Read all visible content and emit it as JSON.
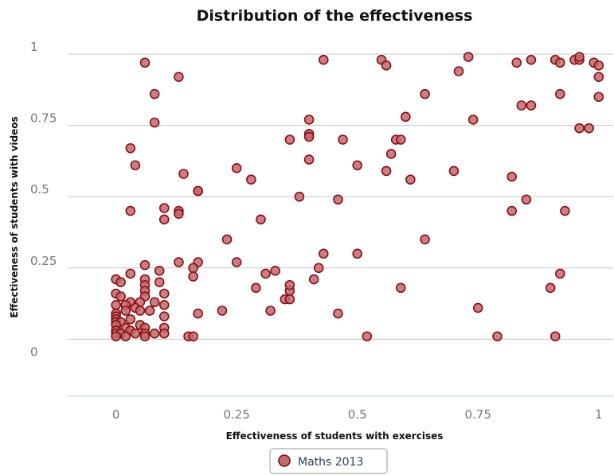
{
  "chart_data": {
    "type": "scatter",
    "title": "Distribution of the effectiveness",
    "xlabel": "Effectiveness of students with exercises",
    "ylabel": "Effectiveness of students with videos",
    "xlim": [
      -0.1,
      1.03
    ],
    "ylim": [
      -0.2,
      1.03
    ],
    "x_ticks": [
      {
        "value": 0,
        "label": "0"
      },
      {
        "value": 0.25,
        "label": "0.25"
      },
      {
        "value": 0.5,
        "label": "0.5"
      },
      {
        "value": 0.75,
        "label": "0.75"
      },
      {
        "value": 1,
        "label": "1"
      }
    ],
    "y_ticks": [
      {
        "value": 0,
        "label": "0"
      },
      {
        "value": 0.25,
        "label": "0.25"
      },
      {
        "value": 0.5,
        "label": "0.5"
      },
      {
        "value": 0.75,
        "label": "0.75"
      },
      {
        "value": 1,
        "label": "1"
      }
    ],
    "grid": true,
    "legend_position": "bottom-center",
    "colors": {
      "point_fill": "#c06a6f",
      "point_stroke": "#8b0d12",
      "grid": "#c8c8c8",
      "axis": "#c0d0e0"
    },
    "series": [
      {
        "name": "Maths 2013",
        "points": [
          [
            0.06,
            0.97
          ],
          [
            0.13,
            0.92
          ],
          [
            0.08,
            0.86
          ],
          [
            0.08,
            0.76
          ],
          [
            0.03,
            0.67
          ],
          [
            0.04,
            0.61
          ],
          [
            0.14,
            0.58
          ],
          [
            0.17,
            0.52
          ],
          [
            0.17,
            0.52
          ],
          [
            0.1,
            0.46
          ],
          [
            0.13,
            0.45
          ],
          [
            0.13,
            0.44
          ],
          [
            0.03,
            0.45
          ],
          [
            0.1,
            0.42
          ],
          [
            0.13,
            0.27
          ],
          [
            0.17,
            0.27
          ],
          [
            0.16,
            0.25
          ],
          [
            0.16,
            0.22
          ],
          [
            0.06,
            0.26
          ],
          [
            0.09,
            0.24
          ],
          [
            0.03,
            0.23
          ],
          [
            0.0,
            0.21
          ],
          [
            0.01,
            0.2
          ],
          [
            0.06,
            0.21
          ],
          [
            0.06,
            0.19
          ],
          [
            0.06,
            0.17
          ],
          [
            0.09,
            0.2
          ],
          [
            0.0,
            0.16
          ],
          [
            0.01,
            0.15
          ],
          [
            0.06,
            0.15
          ],
          [
            0.1,
            0.16
          ],
          [
            0.08,
            0.13
          ],
          [
            0.03,
            0.13
          ],
          [
            0.05,
            0.13
          ],
          [
            0.1,
            0.12
          ],
          [
            0.0,
            0.12
          ],
          [
            0.02,
            0.12
          ],
          [
            0.04,
            0.11
          ],
          [
            0.07,
            0.1
          ],
          [
            0.0,
            0.09
          ],
          [
            0.02,
            0.1
          ],
          [
            0.05,
            0.1
          ],
          [
            0.0,
            0.08
          ],
          [
            0.1,
            0.08
          ],
          [
            0.0,
            0.07
          ],
          [
            0.03,
            0.07
          ],
          [
            0.0,
            0.06
          ],
          [
            0.01,
            0.06
          ],
          [
            0.05,
            0.05
          ],
          [
            0.0,
            0.05
          ],
          [
            0.02,
            0.04
          ],
          [
            0.06,
            0.04
          ],
          [
            0.1,
            0.04
          ],
          [
            0.0,
            0.03
          ],
          [
            0.03,
            0.03
          ],
          [
            0.0,
            0.02
          ],
          [
            0.01,
            0.02
          ],
          [
            0.04,
            0.02
          ],
          [
            0.06,
            0.02
          ],
          [
            0.08,
            0.02
          ],
          [
            0.1,
            0.02
          ],
          [
            0.0,
            0.01
          ],
          [
            0.02,
            0.01
          ],
          [
            0.06,
            0.01
          ],
          [
            0.15,
            0.01
          ],
          [
            0.16,
            0.01
          ],
          [
            0.17,
            0.09
          ],
          [
            0.22,
            0.1
          ],
          [
            0.23,
            0.35
          ],
          [
            0.25,
            0.6
          ],
          [
            0.25,
            0.27
          ],
          [
            0.28,
            0.56
          ],
          [
            0.29,
            0.18
          ],
          [
            0.3,
            0.42
          ],
          [
            0.31,
            0.23
          ],
          [
            0.32,
            0.1
          ],
          [
            0.33,
            0.24
          ],
          [
            0.35,
            0.14
          ],
          [
            0.36,
            0.14
          ],
          [
            0.36,
            0.17
          ],
          [
            0.36,
            0.19
          ],
          [
            0.36,
            0.7
          ],
          [
            0.38,
            0.5
          ],
          [
            0.4,
            0.77
          ],
          [
            0.4,
            0.72
          ],
          [
            0.4,
            0.71
          ],
          [
            0.4,
            0.63
          ],
          [
            0.41,
            0.21
          ],
          [
            0.42,
            0.25
          ],
          [
            0.43,
            0.3
          ],
          [
            0.43,
            0.98
          ],
          [
            0.46,
            0.49
          ],
          [
            0.46,
            0.09
          ],
          [
            0.47,
            0.7
          ],
          [
            0.5,
            0.61
          ],
          [
            0.5,
            0.3
          ],
          [
            0.52,
            0.01
          ],
          [
            0.55,
            0.98
          ],
          [
            0.56,
            0.96
          ],
          [
            0.56,
            0.59
          ],
          [
            0.57,
            0.65
          ],
          [
            0.58,
            0.7
          ],
          [
            0.59,
            0.7
          ],
          [
            0.59,
            0.18
          ],
          [
            0.6,
            0.78
          ],
          [
            0.61,
            0.56
          ],
          [
            0.64,
            0.86
          ],
          [
            0.64,
            0.35
          ],
          [
            0.7,
            0.59
          ],
          [
            0.71,
            0.94
          ],
          [
            0.73,
            0.99
          ],
          [
            0.74,
            0.77
          ],
          [
            0.75,
            0.11
          ],
          [
            0.79,
            0.01
          ],
          [
            0.82,
            0.57
          ],
          [
            0.82,
            0.45
          ],
          [
            0.83,
            0.97
          ],
          [
            0.84,
            0.82
          ],
          [
            0.85,
            0.49
          ],
          [
            0.86,
            0.98
          ],
          [
            0.86,
            0.82
          ],
          [
            0.9,
            0.18
          ],
          [
            0.91,
            0.98
          ],
          [
            0.91,
            0.01
          ],
          [
            0.92,
            0.97
          ],
          [
            0.92,
            0.86
          ],
          [
            0.92,
            0.23
          ],
          [
            0.93,
            0.45
          ],
          [
            0.95,
            0.98
          ],
          [
            0.96,
            0.98
          ],
          [
            0.96,
            0.99
          ],
          [
            0.96,
            0.74
          ],
          [
            0.98,
            0.74
          ],
          [
            0.99,
            0.97
          ],
          [
            1.0,
            0.96
          ],
          [
            1.0,
            0.92
          ],
          [
            1.0,
            0.85
          ]
        ]
      }
    ]
  }
}
